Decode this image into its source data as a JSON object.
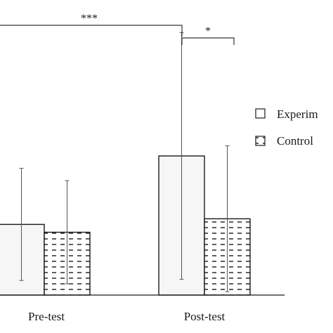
{
  "chart_data": {
    "type": "bar",
    "categories": [
      "Pre-test",
      "Post-test"
    ],
    "series": [
      {
        "name": "Experimental",
        "values": [
          0.63,
          1.24
        ],
        "error": [
          0.5,
          1.1
        ],
        "style": "plain"
      },
      {
        "name": "Control",
        "values": [
          0.56,
          0.68
        ],
        "error": [
          0.46,
          0.65
        ],
        "style": "dashed-fill"
      }
    ],
    "legend_visible": [
      "Experim",
      "Control"
    ],
    "legend_position": "right",
    "title": "",
    "xlabel": "",
    "ylabel": "",
    "ylim": [
      0,
      2.63
    ],
    "grid": false,
    "significance": [
      {
        "label": "***",
        "between": "Pre-test Experimental vs Post-test Experimental"
      },
      {
        "label": "*",
        "between": "Post-test Experimental vs Post-test Control"
      }
    ],
    "colors": {
      "bar_fill": "#f6f6f6",
      "bar_stroke": "#1a1a1a",
      "error_bar": "#555555",
      "axis": "#1a1a1a"
    }
  }
}
